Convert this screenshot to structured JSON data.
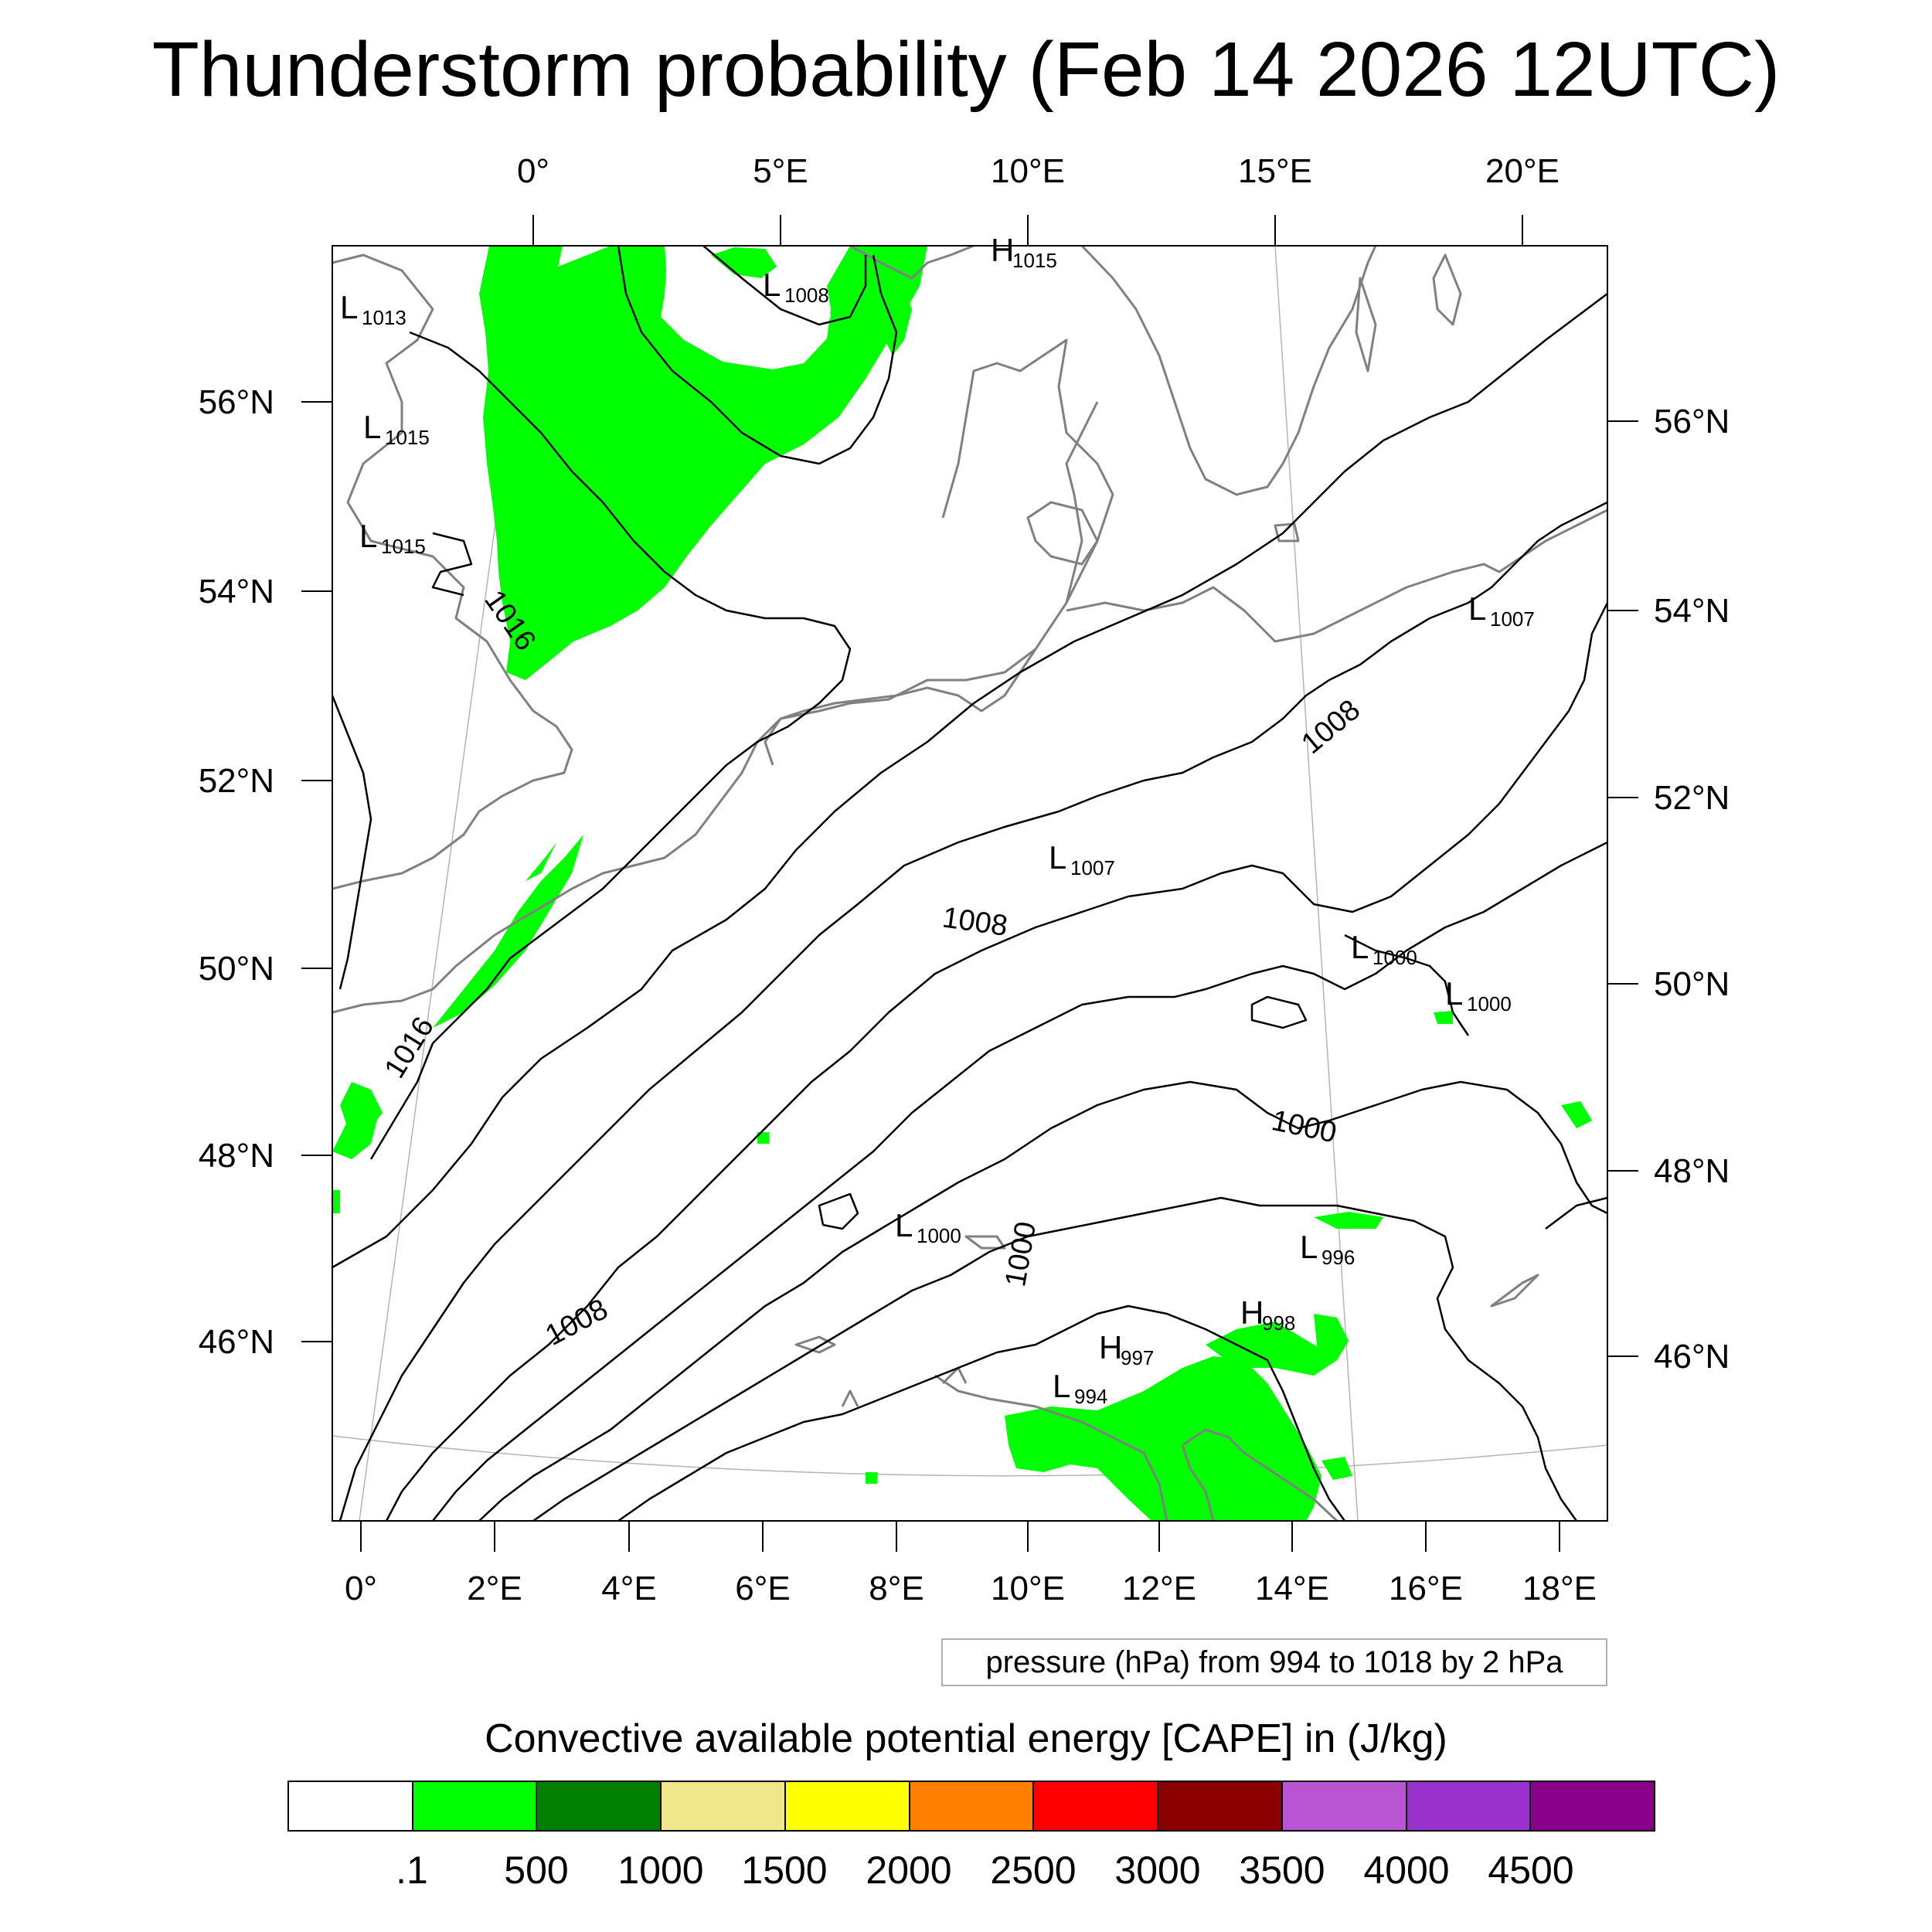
{
  "title": "Thunderstorm probability (Feb 14 2026 12UTC)",
  "top_lon_labels": [
    "0°",
    "5°E",
    "10°E",
    "15°E",
    "20°E"
  ],
  "bottom_lon_labels": [
    "0°",
    "2°E",
    "4°E",
    "6°E",
    "8°E",
    "10°E",
    "12°E",
    "14°E",
    "16°E",
    "18°E"
  ],
  "left_lat_labels": [
    "56°N",
    "54°N",
    "52°N",
    "50°N",
    "48°N",
    "46°N"
  ],
  "right_lat_labels": [
    "56°N",
    "54°N",
    "52°N",
    "50°N",
    "48°N",
    "46°N"
  ],
  "contour_labels": [
    "1016",
    "1016",
    "1008",
    "1008",
    "1008",
    "1000",
    "1000"
  ],
  "pressure_centers": [
    {
      "type": "L",
      "value": "1013"
    },
    {
      "type": "L",
      "value": "1015"
    },
    {
      "type": "L",
      "value": "1015"
    },
    {
      "type": "L",
      "value": "1008"
    },
    {
      "type": "H",
      "value": "1015"
    },
    {
      "type": "L",
      "value": "1007"
    },
    {
      "type": "L",
      "value": "1007"
    },
    {
      "type": "L",
      "value": "1000"
    },
    {
      "type": "L",
      "value": "1000"
    },
    {
      "type": "L",
      "value": "1000"
    },
    {
      "type": "L",
      "value": "996"
    },
    {
      "type": "H",
      "value": "998"
    },
    {
      "type": "H",
      "value": "997"
    },
    {
      "type": "L",
      "value": "994"
    }
  ],
  "contour_info": "pressure (hPa) from 994 to 1018 by 2 hPa",
  "legend": {
    "title": "Convective available potential energy [CAPE] in (J/kg)",
    "labels": [
      ".1",
      "500",
      "1000",
      "1500",
      "2000",
      "2500",
      "3000",
      "3500",
      "4000",
      "4500"
    ],
    "colors": [
      "#ffffff",
      "#00ff00",
      "#007f00",
      "#f0e68c",
      "#ffff00",
      "#ff8000",
      "#ff0000",
      "#8b0000",
      "#b955d3",
      "#9932cc",
      "#8b008b"
    ]
  },
  "colors": {
    "cape_fill": "#00ff00",
    "coastline": "#808080",
    "contour": "#000000",
    "graticule": "#b4b4b4"
  }
}
